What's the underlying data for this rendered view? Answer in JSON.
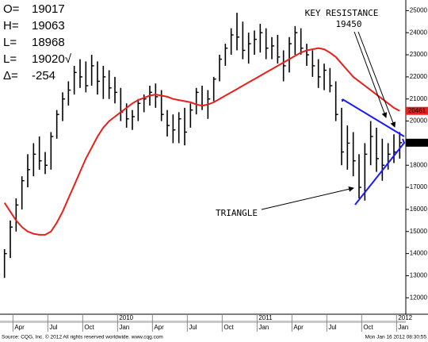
{
  "chart_data": {
    "type": "hlc",
    "info": [
      {
        "label": "O=",
        "value": "19017"
      },
      {
        "label": "H=",
        "value": "19063"
      },
      {
        "label": "L=",
        "value": "18968"
      },
      {
        "label": "L=",
        "value": "19020√"
      },
      {
        "label": "Δ=",
        "value": "-254"
      }
    ],
    "annotations": [
      "KEY RESISTANCE",
      "19450",
      "TRIANGLE"
    ],
    "source": "Source: CQG, Inc. © 2012 All rights reserved worldwide. www.cqg.com",
    "timestamp": "Mon Jan 16 2012 08:30:55",
    "categories": [
      null,
      null,
      "Apr",
      null,
      null,
      null,
      null,
      null,
      "Jul",
      null,
      null,
      null,
      null,
      null,
      "Oct",
      null,
      null,
      null,
      null,
      null,
      "Jan",
      null,
      null,
      null,
      null,
      null,
      "Apr",
      null,
      null,
      null,
      null,
      null,
      "Jul",
      null,
      null,
      null,
      null,
      null,
      "Oct",
      null,
      null,
      null,
      null,
      null,
      "Jan",
      null,
      null,
      null,
      null,
      null,
      "Apr",
      null,
      null,
      null,
      null,
      null,
      "Jul",
      null,
      null,
      null,
      null,
      null,
      "Oct",
      null,
      null,
      null,
      null,
      null,
      "Jan"
    ],
    "year_labels": [
      null,
      null,
      null,
      null,
      null,
      null,
      null,
      null,
      null,
      null,
      null,
      null,
      null,
      null,
      null,
      null,
      null,
      null,
      null,
      null,
      "2010",
      null,
      null,
      null,
      null,
      null,
      null,
      null,
      null,
      null,
      null,
      null,
      null,
      null,
      null,
      null,
      null,
      null,
      null,
      null,
      null,
      null,
      null,
      null,
      "2011",
      null,
      null,
      null,
      null,
      null,
      null,
      null,
      null,
      null,
      null,
      null,
      null,
      null,
      null,
      null,
      null,
      null,
      null,
      null,
      null,
      null,
      null,
      null,
      "2012"
    ],
    "high": [
      14200,
      15500,
      16500,
      17500,
      18500,
      19000,
      19300,
      18600,
      19500,
      20500,
      21300,
      21800,
      22500,
      22800,
      22700,
      23000,
      22700,
      22500,
      22300,
      22000,
      21500,
      20800,
      20500,
      21000,
      21200,
      21600,
      21700,
      21400,
      20500,
      20300,
      20400,
      20600,
      20800,
      21500,
      21600,
      21400,
      22000,
      23000,
      23500,
      24200,
      24900,
      24500,
      24000,
      24100,
      24400,
      24200,
      23800,
      23900,
      23200,
      23800,
      24300,
      24200,
      23500,
      23200,
      22800,
      22600,
      22400,
      21800,
      20600,
      19800,
      19500,
      18500,
      19000,
      20000,
      19700,
      19200,
      19000,
      19400,
      19500
    ],
    "low": [
      12900,
      13800,
      15000,
      16000,
      17000,
      17500,
      17800,
      17600,
      17800,
      19200,
      20000,
      20700,
      21200,
      21500,
      21300,
      21600,
      21200,
      21000,
      21000,
      20800,
      20000,
      19700,
      19600,
      20000,
      20400,
      20700,
      20600,
      20000,
      19300,
      19000,
      19000,
      18900,
      19700,
      20300,
      20500,
      20100,
      20900,
      21800,
      22500,
      23000,
      23200,
      22800,
      22600,
      23000,
      23100,
      22800,
      22800,
      22600,
      21800,
      22200,
      23000,
      23000,
      22500,
      22000,
      21500,
      21400,
      21300,
      20000,
      18000,
      17800,
      17500,
      16500,
      16400,
      18000,
      17700,
      17300,
      17800,
      18100,
      18300
    ],
    "close": [
      14000,
      15200,
      16200,
      17300,
      17800,
      18500,
      18200,
      18000,
      19300,
      20300,
      21000,
      21400,
      22200,
      22000,
      21600,
      22500,
      21800,
      22000,
      21500,
      21300,
      20400,
      20100,
      20200,
      20800,
      21000,
      21300,
      21100,
      20300,
      19800,
      19600,
      20100,
      19500,
      20500,
      21300,
      20700,
      21000,
      21900,
      22800,
      23300,
      23900,
      23800,
      23200,
      23500,
      23700,
      24000,
      23300,
      23400,
      22900,
      22500,
      23500,
      24000,
      23300,
      23000,
      22500,
      22000,
      22300,
      21600,
      20300,
      18600,
      19000,
      18200,
      17000,
      18500,
      19300,
      18300,
      18000,
      18500,
      18600,
      19020
    ],
    "bar_color": "#000000",
    "moving_average": {
      "color": "#e8201c",
      "values": [
        16300,
        15900,
        15500,
        15200,
        15000,
        14900,
        14850,
        14850,
        15000,
        15400,
        15900,
        16500,
        17100,
        17700,
        18300,
        18800,
        19300,
        19700,
        20000,
        20200,
        20400,
        20600,
        20800,
        20950,
        21050,
        21150,
        21200,
        21150,
        21100,
        21000,
        20950,
        20900,
        20850,
        20750,
        20700,
        20750,
        20850,
        21000,
        21150,
        21300,
        21450,
        21600,
        21750,
        21900,
        22050,
        22200,
        22350,
        22500,
        22650,
        22800,
        22950,
        23100,
        23200,
        23250,
        23300,
        23250,
        23100,
        22900,
        22600,
        22300,
        22000,
        21800,
        21600,
        21400,
        21200,
        21000,
        20800,
        20600,
        20461
      ]
    },
    "ylim": [
      11400,
      25300
    ],
    "yticks": [
      12000,
      13000,
      14000,
      15000,
      16000,
      17000,
      18000,
      19000,
      20000,
      21000,
      22000,
      23000,
      24000,
      25000
    ]
  }
}
